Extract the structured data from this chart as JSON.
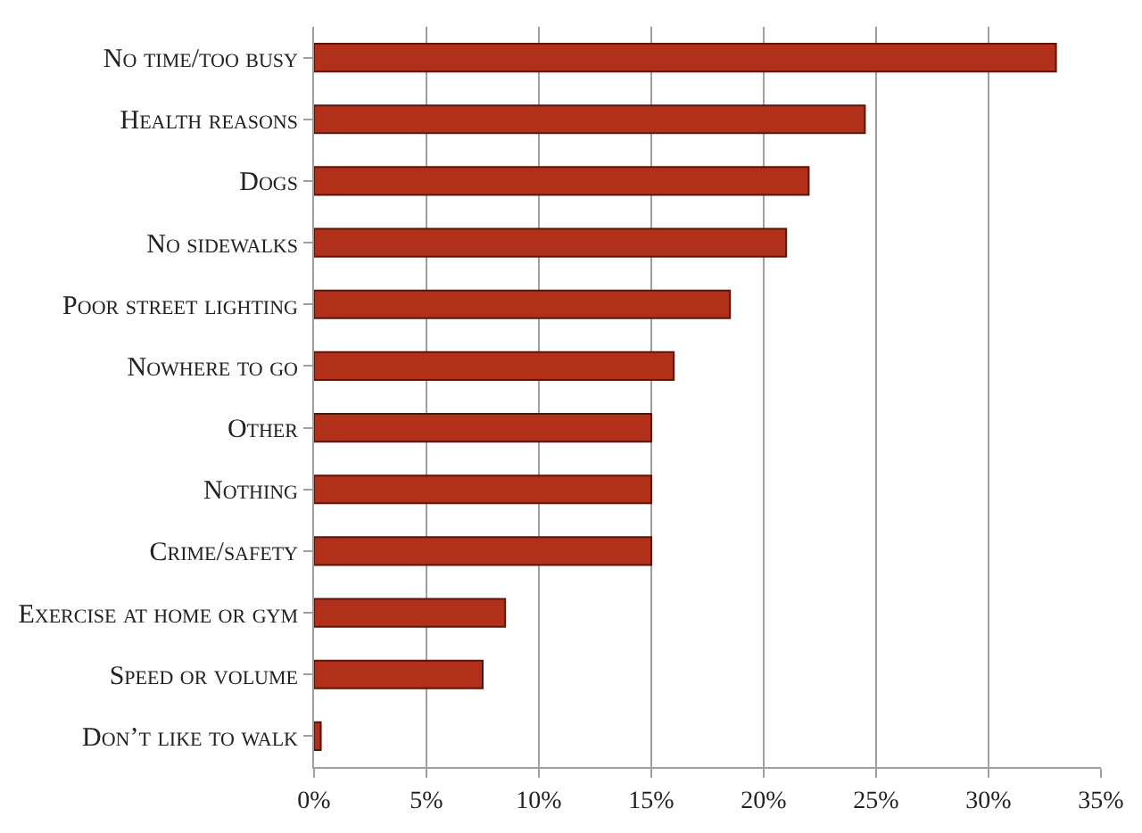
{
  "chart_data": {
    "type": "bar",
    "orientation": "horizontal",
    "categories": [
      "No time/too busy",
      "Health reasons",
      "Dogs",
      "No sidewalks",
      "Poor street lighting",
      "Nowhere to go",
      "Other",
      "Nothing",
      "Crime/safety",
      "Exercise at home or gym",
      "Speed or volume",
      "Don’t like to walk"
    ],
    "values": [
      33,
      24.5,
      22,
      21,
      18.5,
      16,
      15,
      15,
      15,
      8.5,
      7.5,
      0.3
    ],
    "color": "#b0301a",
    "xlim": [
      0,
      35
    ],
    "xticks": [
      {
        "value": 0,
        "label": "0%"
      },
      {
        "value": 5,
        "label": "5%"
      },
      {
        "value": 10,
        "label": "10%"
      },
      {
        "value": 15,
        "label": "15%"
      },
      {
        "value": 20,
        "label": "20%"
      },
      {
        "value": 25,
        "label": "25%"
      },
      {
        "value": 30,
        "label": "30%"
      },
      {
        "value": 35,
        "label": "35%"
      }
    ],
    "grid": "x",
    "legend": false
  }
}
